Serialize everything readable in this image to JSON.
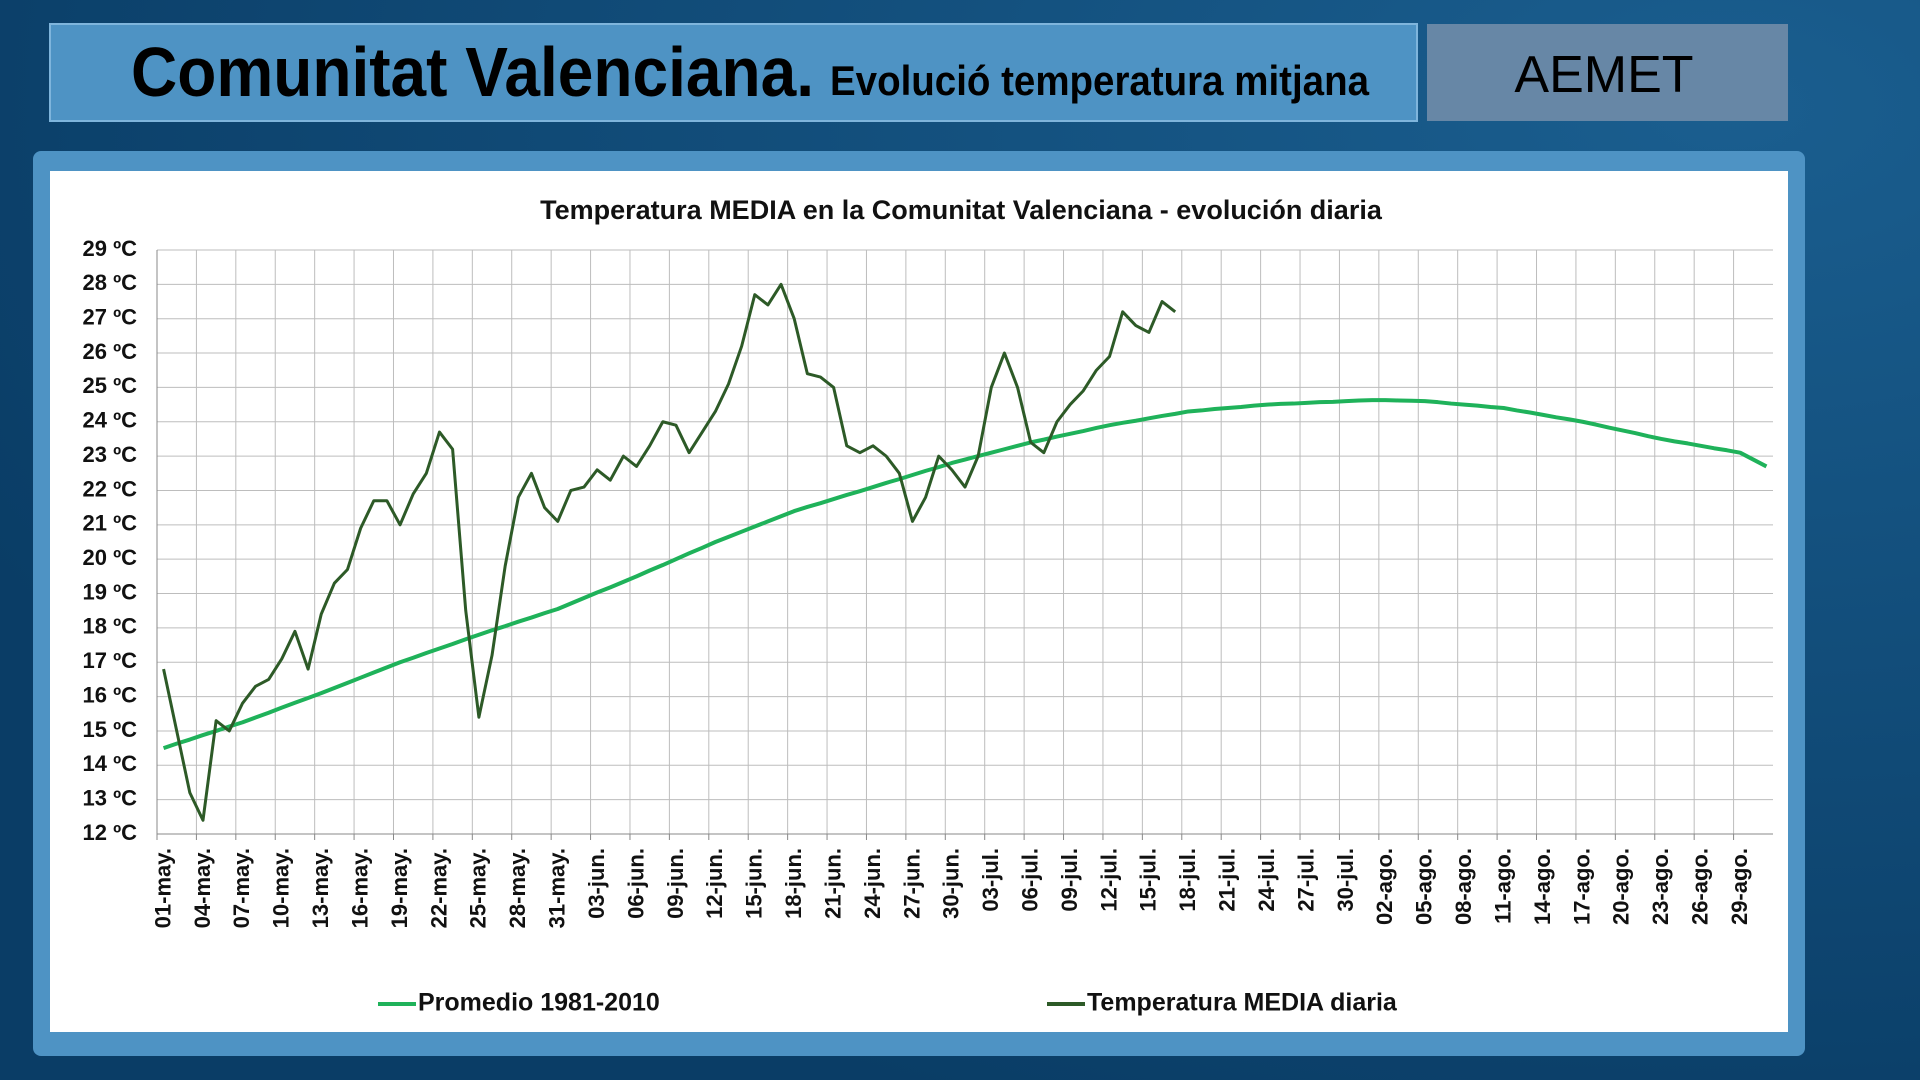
{
  "header": {
    "title": "Comunitat Valenciana.",
    "subtitle": "Evolució temperatura mitjana",
    "brand": "AEMET"
  },
  "chart_data": {
    "type": "line",
    "title": "Temperatura MEDIA en la Comunitat Valenciana - evolución diaria",
    "categories": [
      "01-may.",
      null,
      null,
      "04-may.",
      null,
      null,
      "07-may.",
      null,
      null,
      "10-may.",
      null,
      null,
      "13-may.",
      null,
      null,
      "16-may.",
      null,
      null,
      "19-may.",
      null,
      null,
      "22-may.",
      null,
      null,
      "25-may.",
      null,
      null,
      "28-may.",
      null,
      null,
      "31-may.",
      null,
      null,
      "03-jun.",
      null,
      null,
      "06-jun.",
      null,
      null,
      "09-jun.",
      null,
      null,
      "12-jun.",
      null,
      null,
      "15-jun.",
      null,
      null,
      "18-jun.",
      null,
      null,
      "21-jun.",
      null,
      null,
      "24-jun.",
      null,
      null,
      "27-jun.",
      null,
      null,
      "30-jun.",
      null,
      null,
      "03-jul.",
      null,
      null,
      "06-jul.",
      null,
      null,
      "09-jul.",
      null,
      null,
      "12-jul.",
      null,
      null,
      "15-jul.",
      null,
      null,
      "18-jul.",
      null,
      null,
      "21-jul.",
      null,
      null,
      "24-jul.",
      null,
      null,
      "27-jul.",
      null,
      null,
      "30-jul.",
      null,
      null,
      "02-ago.",
      null,
      null,
      "05-ago.",
      null,
      null,
      "08-ago.",
      null,
      null,
      "11-ago.",
      null,
      null,
      "14-ago.",
      null,
      null,
      "17-ago.",
      null,
      null,
      "20-ago.",
      null,
      null,
      "23-ago.",
      null,
      null,
      "26-ago.",
      null,
      null,
      "29-ago.",
      null,
      null
    ],
    "series": [
      {
        "name": "Promedio 1981-2010",
        "color": "#1fb25a",
        "values": [
          14.5,
          14.63,
          14.75,
          14.88,
          15.0,
          15.13,
          15.25,
          15.39,
          15.53,
          15.68,
          15.82,
          15.96,
          16.1,
          16.25,
          16.4,
          16.55,
          16.7,
          16.85,
          17.0,
          17.13,
          17.27,
          17.4,
          17.53,
          17.67,
          17.8,
          17.93,
          18.05,
          18.18,
          18.3,
          18.43,
          18.55,
          18.71,
          18.87,
          19.03,
          19.18,
          19.34,
          19.5,
          19.67,
          19.83,
          20.0,
          20.17,
          20.33,
          20.5,
          20.65,
          20.8,
          20.95,
          21.1,
          21.25,
          21.4,
          21.52,
          21.63,
          21.75,
          21.87,
          21.98,
          22.1,
          22.22,
          22.33,
          22.45,
          22.57,
          22.68,
          22.8,
          22.9,
          23.0,
          23.1,
          23.2,
          23.3,
          23.4,
          23.48,
          23.57,
          23.65,
          23.73,
          23.82,
          23.9,
          23.97,
          24.03,
          24.1,
          24.17,
          24.23,
          24.3,
          24.33,
          24.37,
          24.4,
          24.43,
          24.47,
          24.5,
          24.52,
          24.53,
          24.55,
          24.57,
          24.58,
          24.6,
          24.62,
          24.63,
          24.63,
          24.62,
          24.61,
          24.6,
          24.57,
          24.53,
          24.5,
          24.47,
          24.43,
          24.4,
          24.33,
          24.27,
          24.2,
          24.13,
          24.07,
          24.0,
          23.92,
          23.83,
          23.75,
          23.67,
          23.58,
          23.5,
          23.43,
          23.37,
          23.3,
          23.23,
          23.17,
          23.1,
          22.9,
          22.7
        ]
      },
      {
        "name": "Temperatura MEDIA diaria",
        "color": "#2d5a27",
        "values": [
          16.8,
          15.0,
          13.2,
          12.4,
          15.3,
          15.0,
          15.8,
          16.3,
          16.5,
          17.1,
          17.9,
          16.8,
          18.4,
          19.3,
          19.7,
          20.9,
          21.7,
          21.7,
          21.0,
          21.9,
          22.5,
          23.7,
          23.2,
          18.5,
          15.4,
          17.2,
          19.8,
          21.8,
          22.5,
          21.5,
          21.1,
          22.0,
          22.1,
          22.6,
          22.3,
          23.0,
          22.7,
          23.3,
          24.0,
          23.9,
          23.1,
          23.7,
          24.3,
          25.1,
          26.2,
          27.7,
          27.4,
          28.0,
          27.0,
          25.4,
          25.3,
          25.0,
          23.3,
          23.1,
          23.3,
          23.0,
          22.5,
          21.1,
          21.8,
          23.0,
          22.6,
          22.1,
          23.0,
          25.0,
          26.0,
          25.0,
          23.4,
          23.1,
          24.0,
          24.5,
          24.9,
          25.5,
          25.9,
          27.2,
          26.8,
          26.6,
          27.5,
          27.2,
          null,
          null,
          null,
          null,
          null,
          null,
          null,
          null,
          null,
          null,
          null,
          null,
          null,
          null,
          null,
          null,
          null,
          null,
          null,
          null,
          null,
          null,
          null,
          null,
          null,
          null,
          null,
          null,
          null,
          null,
          null,
          null,
          null,
          null,
          null,
          null,
          null,
          null,
          null,
          null,
          null,
          null,
          null,
          null,
          null
        ]
      }
    ],
    "ylim": [
      12,
      29
    ],
    "yticks": [
      {
        "value": 12,
        "label": "12 ºC"
      },
      {
        "value": 13,
        "label": "13 ºC"
      },
      {
        "value": 14,
        "label": "14 ºC"
      },
      {
        "value": 15,
        "label": "15 ºC"
      },
      {
        "value": 16,
        "label": "16 ºC"
      },
      {
        "value": 17,
        "label": "17 ºC"
      },
      {
        "value": 18,
        "label": "18 ºC"
      },
      {
        "value": 19,
        "label": "19 ºC"
      },
      {
        "value": 20,
        "label": "20 ºC"
      },
      {
        "value": 21,
        "label": "21 ºC"
      },
      {
        "value": 22,
        "label": "22 ºC"
      },
      {
        "value": 23,
        "label": "23 ºC"
      },
      {
        "value": 24,
        "label": "24 ºC"
      },
      {
        "value": 25,
        "label": "25 ºC"
      },
      {
        "value": 26,
        "label": "26 ºC"
      },
      {
        "value": 27,
        "label": "27 ºC"
      },
      {
        "value": 28,
        "label": "28 ºC"
      },
      {
        "value": 29,
        "label": "29 ºC"
      }
    ],
    "grid": true,
    "legend": "bottom"
  }
}
